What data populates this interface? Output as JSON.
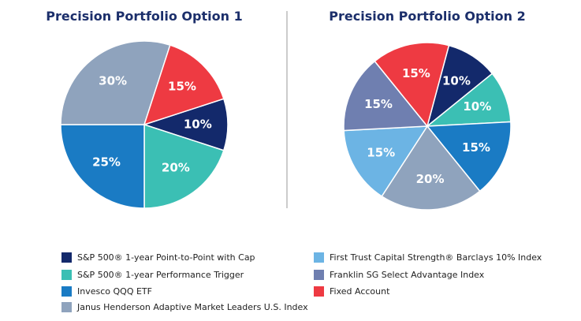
{
  "chart_data": [
    {
      "type": "pie",
      "title": "Precision Portfolio Option 1",
      "values": [
        10,
        20,
        25,
        30,
        15
      ],
      "value_labels": [
        "10%",
        "20%",
        "25%",
        "30%",
        "15%"
      ],
      "colors": [
        "#13296b",
        "#3bbfb4",
        "#1a7bc4",
        "#8fa3bd",
        "#ee3a42"
      ]
    },
    {
      "type": "pie",
      "title": "Precision Portfolio Option 2",
      "values": [
        10,
        10,
        15,
        20,
        15,
        15,
        15
      ],
      "value_labels": [
        "10%",
        "10%",
        "15%",
        "20%",
        "15%",
        "15%",
        "15%"
      ],
      "colors": [
        "#13296b",
        "#3bbfb4",
        "#1a7bc4",
        "#8fa3bd",
        "#6cb4e4",
        "#6f7fb0",
        "#ee3a42"
      ]
    }
  ],
  "legend": [
    {
      "name": "S&P 500® 1-year Point-to-Point with Cap",
      "color": "#13296b"
    },
    {
      "name": "S&P 500® 1-year Performance Trigger",
      "color": "#3bbfb4"
    },
    {
      "name": "Invesco QQQ ETF",
      "color": "#1a7bc4"
    },
    {
      "name": "Janus Henderson Adaptive Market Leaders U.S. Index",
      "color": "#8fa3bd"
    },
    {
      "name": "First Trust Capital Strength® Barclays 10% Index",
      "color": "#6cb4e4"
    },
    {
      "name": "Franklin SG Select Advantage Index",
      "color": "#6f7fb0"
    },
    {
      "name": "Fixed Account",
      "color": "#ee3a42"
    }
  ]
}
